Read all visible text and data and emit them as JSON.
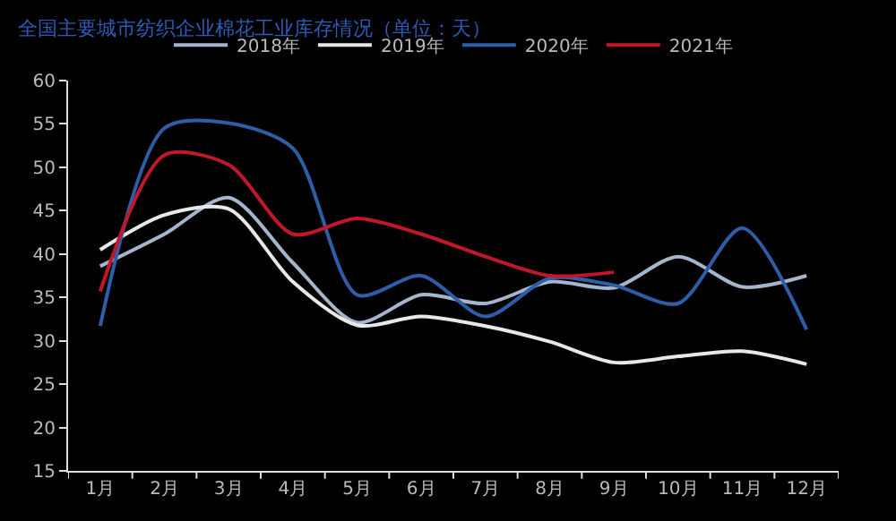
{
  "chart_data": {
    "type": "line",
    "title": "全国主要城市纺织企业棉花工业库存情况（单位：天）",
    "categories": [
      "1月",
      "2月",
      "3月",
      "4月",
      "5月",
      "6月",
      "7月",
      "8月",
      "9月",
      "10月",
      "11月",
      "12月"
    ],
    "ylim": [
      15,
      60
    ],
    "yticks": [
      15,
      20,
      25,
      30,
      35,
      40,
      45,
      50,
      55,
      60
    ],
    "grid": false,
    "legend": "top",
    "marker": "none",
    "line_style": "solid",
    "series": [
      {
        "name": "2018年",
        "color": "#a6b4cc",
        "values": [
          38.6,
          42.3,
          46.5,
          39.0,
          32.1,
          35.3,
          34.3,
          36.8,
          36.1,
          39.7,
          36.2,
          37.5
        ]
      },
      {
        "name": "2019年",
        "color": "#e8e8e8",
        "values": [
          40.5,
          44.5,
          45.2,
          36.8,
          31.8,
          32.8,
          31.7,
          29.9,
          27.5,
          28.2,
          28.8,
          27.3
        ]
      },
      {
        "name": "2020年",
        "color": "#2e5ea8",
        "values": [
          31.7,
          54.5,
          55.1,
          52.2,
          35.3,
          37.5,
          32.8,
          37.2,
          36.4,
          34.3,
          43.0,
          31.3
        ]
      },
      {
        "name": "2021年",
        "color": "#c0182a",
        "values": [
          35.7,
          51.4,
          50.3,
          42.3,
          44.1,
          42.3,
          39.7,
          37.5,
          37.9,
          null,
          null,
          null
        ]
      }
    ]
  }
}
